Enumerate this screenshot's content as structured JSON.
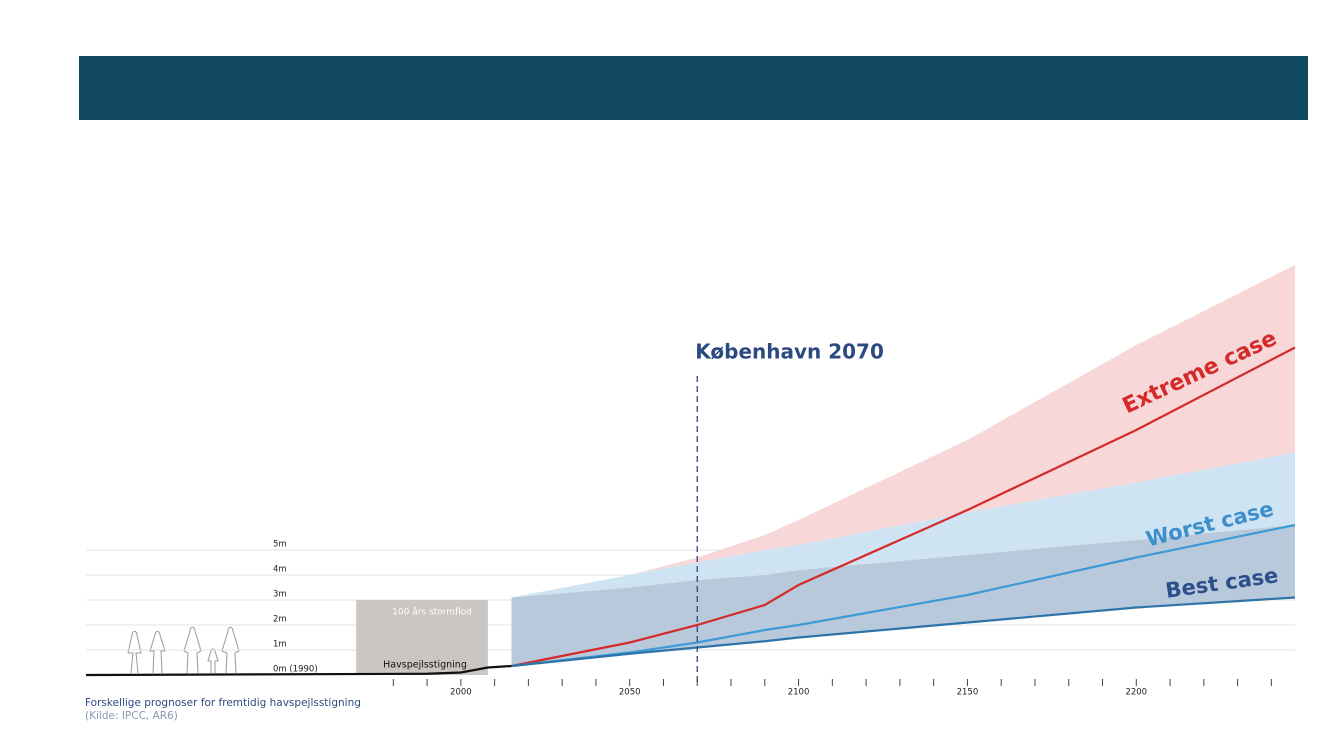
{
  "chart_data": {
    "type": "projection",
    "annotation": "København 2070",
    "annotation_x": 2070,
    "caption": "Forskellige prognoser for fremtidig havspejlsstigning",
    "source": "(Kilde: IPCC, AR6)",
    "surge": {
      "label": "100 års stormflod",
      "x": [
        1969,
        2008
      ],
      "value": 3,
      "color": "#c9c6c3"
    },
    "history": {
      "name": "Havspejlsstigning",
      "color": "#111111",
      "x": [
        1889,
        1990,
        2000,
        2008,
        2015
      ],
      "values": [
        0,
        0.05,
        0.1,
        0.3,
        0.36
      ]
    },
    "x": [
      2015,
      2050,
      2070,
      2090,
      2100,
      2150,
      2200,
      2247
    ],
    "bands": [
      {
        "color": "#f8d7d9",
        "values": [
          3.1,
          4.0,
          4.7,
          5.6,
          6.2,
          9.4,
          13.2,
          16.4
        ]
      },
      {
        "color": "#cfe4f3",
        "values": [
          3.1,
          4.0,
          4.5,
          5.0,
          5.2,
          6.5,
          7.7,
          8.9
        ]
      },
      {
        "color": "#b8c9dc",
        "values": [
          3.1,
          3.5,
          3.8,
          4.0,
          4.2,
          4.8,
          5.4,
          6.0
        ]
      }
    ],
    "series": [
      {
        "name": "Extreme case",
        "color": "#d42a2a",
        "label_color": "#d42a2a",
        "values": [
          0.36,
          1.3,
          2.0,
          2.8,
          3.6,
          6.6,
          9.8,
          13.1
        ]
      },
      {
        "name": "Worst case",
        "color": "#3d9ad6",
        "label_color": "#3d8fcc",
        "values": [
          0.36,
          0.9,
          1.3,
          1.8,
          2.0,
          3.2,
          4.7,
          6.0
        ]
      },
      {
        "name": "Best case",
        "color": "#2f74a8",
        "label_color": "#2c4f8c",
        "values": [
          0.36,
          0.85,
          1.1,
          1.35,
          1.5,
          2.1,
          2.7,
          3.1
        ]
      }
    ],
    "xlim": [
      1889,
      2247
    ],
    "xticks": [
      2000,
      2050,
      2100,
      2150,
      2200
    ],
    "xminor_ticks": [
      1980,
      1990,
      2010,
      2020,
      2030,
      2040,
      2060,
      2070,
      2080,
      2090,
      2110,
      2120,
      2130,
      2140,
      2160,
      2170,
      2180,
      2190,
      2210,
      2220,
      2230,
      2240
    ],
    "ylim": [
      0,
      17
    ],
    "yticks": [
      {
        "value": 0,
        "label": "0m (1990)"
      },
      {
        "value": 1,
        "label": "1m"
      },
      {
        "value": 2,
        "label": "2m"
      },
      {
        "value": 3,
        "label": "3m"
      },
      {
        "value": 4,
        "label": "4m"
      },
      {
        "value": 5,
        "label": "5m"
      }
    ],
    "grid": true
  }
}
